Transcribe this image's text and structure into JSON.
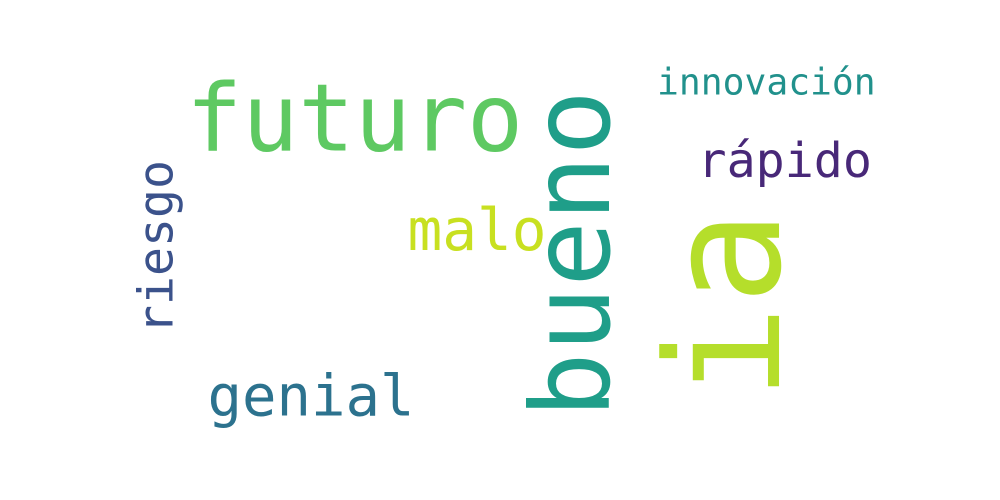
{
  "words": [
    {
      "text": "ia",
      "color": "#b5de2b"
    },
    {
      "text": "bueno",
      "color": "#1f9e89"
    },
    {
      "text": "futuro",
      "color": "#5ec962"
    },
    {
      "text": "riesgo",
      "color": "#3b528b"
    },
    {
      "text": "genial",
      "color": "#2c728e"
    },
    {
      "text": "malo",
      "color": "#c8e020"
    },
    {
      "text": "rápido",
      "color": "#482878"
    },
    {
      "text": "innovación",
      "color": "#21918c"
    }
  ]
}
